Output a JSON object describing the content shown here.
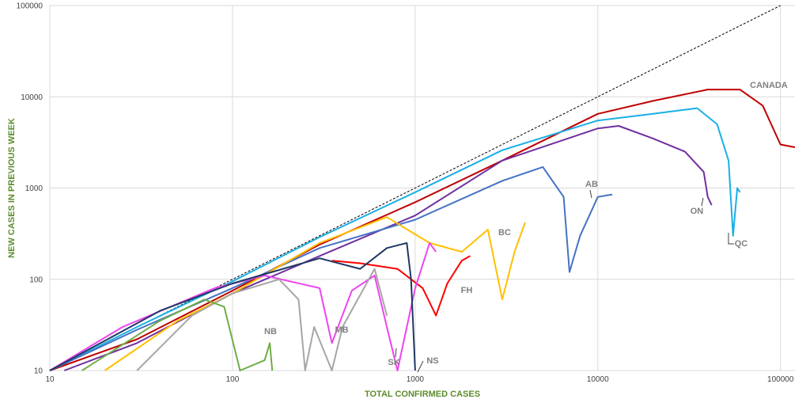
{
  "chart_data": {
    "type": "line",
    "xscale": "log",
    "yscale": "log",
    "xlim": [
      10,
      120000
    ],
    "ylim": [
      10,
      100000
    ],
    "xticks": [
      "10",
      "100",
      "1000",
      "10000",
      "100000"
    ],
    "yticks": [
      "10",
      "100",
      "1000",
      "10000",
      "100000"
    ],
    "xlabel": "TOTAL CONFIRMED CASES",
    "ylabel": "NEW CASES IN PREVIOUS WEEK",
    "grid": true,
    "axis_title_color": "#5b8c2a",
    "reference_line": {
      "style": "dashed",
      "color": "#000000",
      "points": [
        [
          10,
          10
        ],
        [
          100000,
          100000
        ]
      ]
    },
    "series": [
      {
        "name": "CANADA",
        "color": "#c00000",
        "points": [
          [
            10,
            10
          ],
          [
            30,
            22
          ],
          [
            100,
            75
          ],
          [
            300,
            240
          ],
          [
            1000,
            700
          ],
          [
            3000,
            2000
          ],
          [
            10000,
            6500
          ],
          [
            20000,
            9000
          ],
          [
            40000,
            12000
          ],
          [
            60000,
            12000
          ],
          [
            80000,
            8000
          ],
          [
            100000,
            3000
          ],
          [
            120000,
            2800
          ]
        ]
      },
      {
        "name": "QC",
        "color": "#1aafe6",
        "points": [
          [
            10,
            10
          ],
          [
            30,
            30
          ],
          [
            100,
            95
          ],
          [
            300,
            290
          ],
          [
            1000,
            900
          ],
          [
            3000,
            2600
          ],
          [
            10000,
            5500
          ],
          [
            20000,
            6500
          ],
          [
            35000,
            7500
          ],
          [
            45000,
            5000
          ],
          [
            52000,
            2000
          ],
          [
            55000,
            300
          ],
          [
            58000,
            1000
          ],
          [
            60000,
            900
          ]
        ]
      },
      {
        "name": "ON",
        "color": "#7030a0",
        "points": [
          [
            12,
            10
          ],
          [
            30,
            20
          ],
          [
            100,
            70
          ],
          [
            300,
            180
          ],
          [
            1000,
            500
          ],
          [
            3000,
            2000
          ],
          [
            10000,
            4500
          ],
          [
            13000,
            4800
          ],
          [
            20000,
            3500
          ],
          [
            30000,
            2500
          ],
          [
            38000,
            1500
          ],
          [
            40000,
            800
          ],
          [
            42000,
            650
          ]
        ]
      },
      {
        "name": "AB",
        "color": "#4472c4",
        "points": [
          [
            10,
            10
          ],
          [
            30,
            28
          ],
          [
            100,
            80
          ],
          [
            300,
            220
          ],
          [
            1000,
            450
          ],
          [
            3000,
            1200
          ],
          [
            5000,
            1700
          ],
          [
            6500,
            800
          ],
          [
            7000,
            120
          ],
          [
            8000,
            300
          ],
          [
            10000,
            800
          ],
          [
            12000,
            850
          ]
        ]
      },
      {
        "name": "BC",
        "color": "#ffc000",
        "points": [
          [
            20,
            10
          ],
          [
            50,
            35
          ],
          [
            100,
            70
          ],
          [
            300,
            250
          ],
          [
            700,
            480
          ],
          [
            1200,
            250
          ],
          [
            1800,
            200
          ],
          [
            2500,
            350
          ],
          [
            3000,
            60
          ],
          [
            3500,
            200
          ],
          [
            4000,
            420
          ]
        ]
      },
      {
        "name": "FH",
        "color": "#ff0000",
        "points": [
          [
            350,
            160
          ],
          [
            500,
            150
          ],
          [
            800,
            130
          ],
          [
            1100,
            80
          ],
          [
            1300,
            40
          ],
          [
            1500,
            90
          ],
          [
            1800,
            160
          ],
          [
            2000,
            180
          ]
        ]
      },
      {
        "name": "SK",
        "color": "#ee44ee",
        "points": [
          [
            10,
            10
          ],
          [
            25,
            30
          ],
          [
            80,
            80
          ],
          [
            150,
            110
          ],
          [
            300,
            80
          ],
          [
            350,
            20
          ],
          [
            450,
            75
          ],
          [
            600,
            110
          ],
          [
            700,
            30
          ],
          [
            800,
            10
          ],
          [
            1000,
            80
          ],
          [
            1200,
            250
          ],
          [
            1300,
            200
          ]
        ]
      },
      {
        "name": "MB",
        "color": "#a6a6a6",
        "points": [
          [
            30,
            10
          ],
          [
            60,
            40
          ],
          [
            100,
            70
          ],
          [
            180,
            100
          ],
          [
            230,
            60
          ],
          [
            250,
            10
          ],
          [
            280,
            30
          ],
          [
            350,
            10
          ],
          [
            400,
            30
          ],
          [
            600,
            130
          ],
          [
            700,
            40
          ]
        ]
      },
      {
        "name": "NS",
        "color": "#1f3864",
        "points": [
          [
            10,
            10
          ],
          [
            40,
            45
          ],
          [
            100,
            90
          ],
          [
            300,
            170
          ],
          [
            500,
            130
          ],
          [
            700,
            220
          ],
          [
            900,
            250
          ],
          [
            950,
            100
          ],
          [
            1000,
            10
          ]
        ]
      },
      {
        "name": "NB",
        "color": "#70ad47",
        "points": [
          [
            15,
            10
          ],
          [
            40,
            35
          ],
          [
            70,
            60
          ],
          [
            90,
            50
          ],
          [
            110,
            10
          ],
          [
            150,
            13
          ],
          [
            160,
            20
          ],
          [
            165,
            10
          ]
        ]
      }
    ]
  }
}
